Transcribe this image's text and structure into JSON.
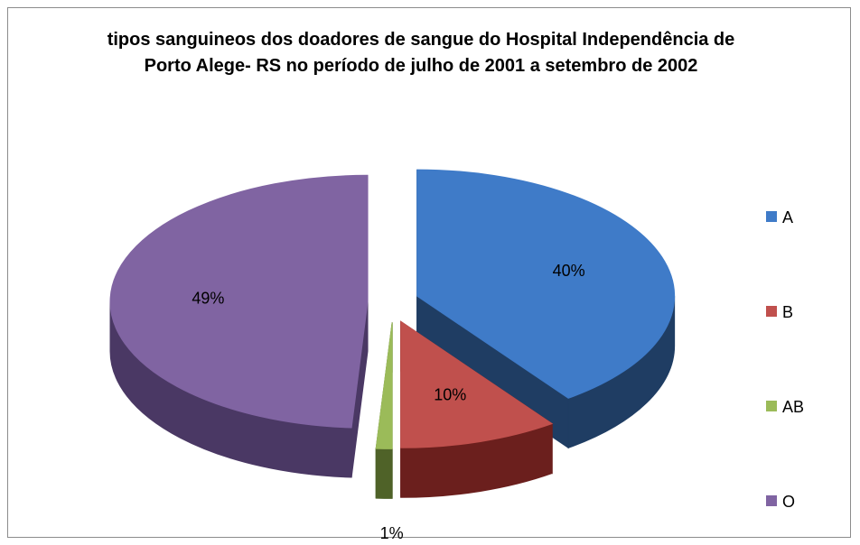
{
  "chart_data": {
    "type": "pie3d",
    "title": "tipos sanguineos dos doadores de sangue do Hospital Independência de Porto Alege- RS no período de julho de 2001 a setembro de 2002",
    "categories": [
      "A",
      "B",
      "AB",
      "O"
    ],
    "values": [
      40,
      10,
      1,
      49
    ],
    "value_labels": [
      "40%",
      "10%",
      "1%",
      "49%"
    ],
    "colors": [
      "#3f7bc8",
      "#c0504d",
      "#9bbb59",
      "#8064a2"
    ],
    "side_colors": [
      "#1f3d63",
      "#6b1f1d",
      "#4f6228",
      "#4a3864"
    ],
    "legend": "right"
  }
}
